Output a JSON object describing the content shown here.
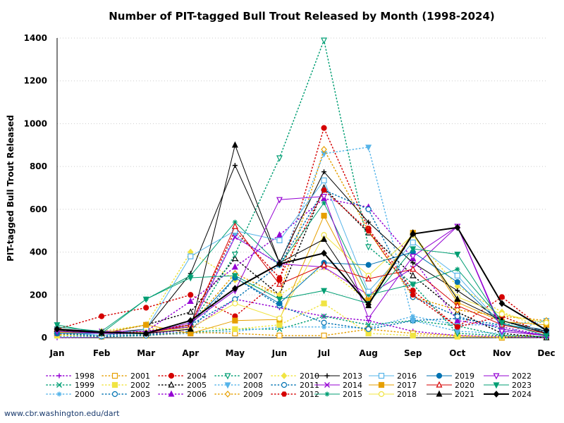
{
  "footer": {
    "url_text": "www.cbr.washington.edu/dart"
  },
  "chart_data": {
    "type": "line",
    "title": "Number of PIT-tagged Bull Trout Released by Month (1998-2024)",
    "xlabel": "",
    "ylabel": "PIT-tagged Bull Trout Released",
    "categories": [
      "Jan",
      "Feb",
      "Mar",
      "Apr",
      "May",
      "Jun",
      "Jul",
      "Aug",
      "Sep",
      "Oct",
      "Nov",
      "Dec"
    ],
    "ylim": [
      0,
      1400
    ],
    "yticks": [
      0,
      200,
      400,
      600,
      800,
      1000,
      1200,
      1400
    ],
    "grid": "horizontal dotted",
    "legend": "bottom",
    "series": [
      {
        "name": "1998",
        "color": "#9400d3",
        "dash": "dot",
        "marker": "plus",
        "values": [
          0,
          3,
          15,
          40,
          180,
          140,
          100,
          80,
          30,
          10,
          5,
          0
        ]
      },
      {
        "name": "1999",
        "color": "#009e73",
        "dash": "dot",
        "marker": "x",
        "values": [
          10,
          5,
          15,
          25,
          40,
          40,
          100,
          60,
          80,
          55,
          10,
          5
        ]
      },
      {
        "name": "2000",
        "color": "#56b4e9",
        "dash": "dot",
        "marker": "star",
        "values": [
          5,
          5,
          10,
          20,
          30,
          50,
          50,
          45,
          100,
          60,
          60,
          80
        ]
      },
      {
        "name": "2001",
        "color": "#e69f00",
        "dash": "dot",
        "marker": "square-open",
        "values": [
          15,
          5,
          10,
          25,
          20,
          10,
          10,
          40,
          20,
          10,
          0,
          20
        ]
      },
      {
        "name": "2002",
        "color": "#f0e442",
        "dash": "dot",
        "marker": "square",
        "values": [
          10,
          10,
          40,
          50,
          40,
          60,
          160,
          20,
          10,
          5,
          5,
          5
        ]
      },
      {
        "name": "2003",
        "color": "#0072b2",
        "dash": "dot",
        "marker": "circle-open",
        "values": [
          20,
          5,
          10,
          30,
          280,
          150,
          70,
          40,
          80,
          90,
          60,
          30
        ]
      },
      {
        "name": "2004",
        "color": "#d50000",
        "dash": "dot",
        "marker": "circle",
        "values": [
          40,
          100,
          140,
          200,
          100,
          270,
          980,
          510,
          220,
          50,
          190,
          30
        ]
      },
      {
        "name": "2005",
        "color": "#000000",
        "dash": "dot",
        "marker": "triangle-open",
        "values": [
          30,
          20,
          60,
          120,
          370,
          200,
          700,
          490,
          290,
          120,
          20,
          0
        ]
      },
      {
        "name": "2006",
        "color": "#9400d3",
        "dash": "dot",
        "marker": "triangle",
        "values": [
          20,
          10,
          30,
          170,
          330,
          480,
          650,
          610,
          370,
          80,
          50,
          10
        ]
      },
      {
        "name": "2007",
        "color": "#009e73",
        "dash": "dot",
        "marker": "triangle-down-open",
        "values": [
          40,
          20,
          30,
          50,
          390,
          840,
          1390,
          425,
          250,
          20,
          10,
          5
        ]
      },
      {
        "name": "2008",
        "color": "#56b4e9",
        "dash": "dot",
        "marker": "triangle-down",
        "values": [
          30,
          10,
          20,
          60,
          480,
          340,
          860,
          890,
          80,
          30,
          20,
          80
        ]
      },
      {
        "name": "2009",
        "color": "#e69f00",
        "dash": "dot",
        "marker": "diamond-open",
        "values": [
          20,
          10,
          30,
          60,
          300,
          200,
          880,
          500,
          190,
          130,
          100,
          80
        ]
      },
      {
        "name": "2010",
        "color": "#f0e442",
        "dash": "dot",
        "marker": "diamond",
        "values": [
          30,
          30,
          60,
          400,
          270,
          200,
          330,
          170,
          480,
          240,
          120,
          40
        ]
      },
      {
        "name": "2011",
        "color": "#0072b2",
        "dash": "dot",
        "marker": "circle-open",
        "values": [
          20,
          10,
          30,
          60,
          180,
          340,
          690,
          600,
          190,
          100,
          40,
          10
        ]
      },
      {
        "name": "2012",
        "color": "#d50000",
        "dash": "dot",
        "marker": "hexagon",
        "values": [
          30,
          20,
          30,
          60,
          500,
          280,
          690,
          500,
          200,
          50,
          100,
          20
        ]
      },
      {
        "name": "2013",
        "color": "#000000",
        "dash": "solid",
        "marker": "plus",
        "values": [
          35,
          20,
          40,
          300,
          805,
          350,
          775,
          540,
          350,
          220,
          80,
          30
        ]
      },
      {
        "name": "2014",
        "color": "#9400d3",
        "dash": "solid",
        "marker": "x",
        "values": [
          40,
          30,
          30,
          50,
          470,
          345,
          330,
          200,
          325,
          520,
          40,
          10
        ]
      },
      {
        "name": "2015",
        "color": "#009e73",
        "dash": "solid",
        "marker": "star",
        "values": [
          50,
          30,
          180,
          290,
          540,
          340,
          630,
          200,
          250,
          320,
          80,
          20
        ]
      },
      {
        "name": "2016",
        "color": "#56b4e9",
        "dash": "solid",
        "marker": "square-open",
        "values": [
          30,
          10,
          40,
          380,
          500,
          455,
          735,
          215,
          445,
          290,
          60,
          40
        ]
      },
      {
        "name": "2017",
        "color": "#e69f00",
        "dash": "solid",
        "marker": "square",
        "values": [
          25,
          20,
          60,
          20,
          80,
          85,
          570,
          175,
          490,
          165,
          75,
          60
        ]
      },
      {
        "name": "2018",
        "color": "#f0e442",
        "dash": "solid",
        "marker": "circle-open",
        "values": [
          30,
          20,
          25,
          45,
          160,
          90,
          480,
          290,
          480,
          190,
          110,
          70
        ]
      },
      {
        "name": "2019",
        "color": "#0072b2",
        "dash": "solid",
        "marker": "circle",
        "values": [
          20,
          20,
          20,
          60,
          280,
          160,
          350,
          340,
          400,
          260,
          60,
          30
        ]
      },
      {
        "name": "2020",
        "color": "#d50000",
        "dash": "solid",
        "marker": "triangle-open",
        "values": [
          40,
          20,
          20,
          60,
          520,
          250,
          340,
          275,
          320,
          150,
          60,
          20
        ]
      },
      {
        "name": "2021",
        "color": "#000000",
        "dash": "solid",
        "marker": "triangle",
        "values": [
          40,
          20,
          20,
          40,
          900,
          350,
          460,
          150,
          490,
          180,
          80,
          20
        ]
      },
      {
        "name": "2022",
        "color": "#9400d3",
        "dash": "solid",
        "marker": "triangle-down-open",
        "values": [
          30,
          20,
          20,
          70,
          220,
          645,
          660,
          90,
          380,
          520,
          30,
          10
        ]
      },
      {
        "name": "2023",
        "color": "#009e73",
        "dash": "solid",
        "marker": "triangle-down",
        "values": [
          60,
          20,
          180,
          280,
          290,
          180,
          220,
          160,
          415,
          390,
          70,
          10
        ]
      },
      {
        "name": "2024",
        "color": "#000000",
        "dash": "solid",
        "marker": "diamond",
        "width": 2,
        "values": [
          40,
          25,
          20,
          80,
          230,
          345,
          395,
          155,
          485,
          515,
          160,
          35
        ]
      }
    ]
  }
}
